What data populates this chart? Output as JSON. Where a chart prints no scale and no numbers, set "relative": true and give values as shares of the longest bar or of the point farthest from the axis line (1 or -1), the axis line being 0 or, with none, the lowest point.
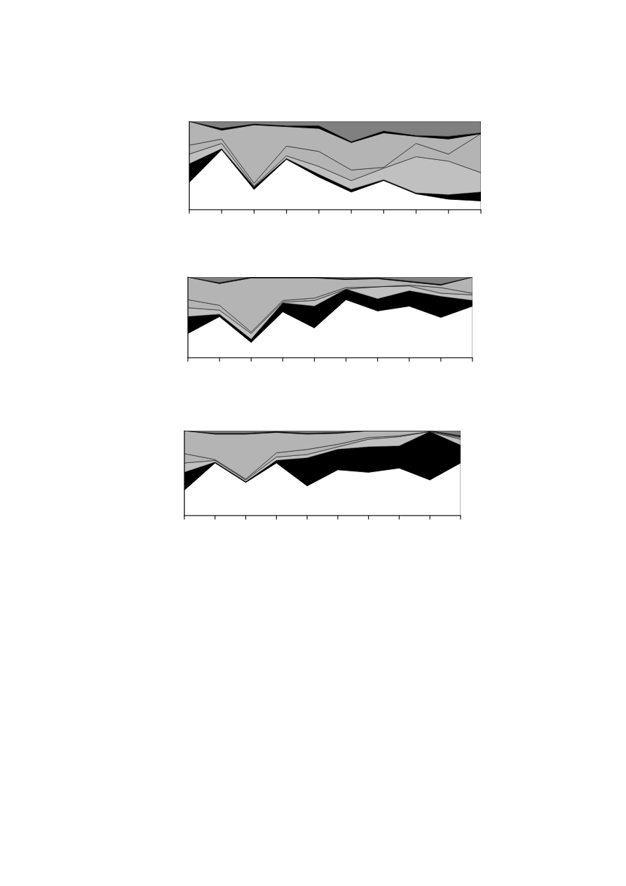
{
  "chart_data": [
    {
      "type": "area",
      "stacked": true,
      "relative": true,
      "categories": [
        null,
        null,
        null,
        null,
        null,
        null,
        null,
        null,
        null,
        null
      ],
      "series": [
        {
          "color": "#ffffff",
          "values": [
            0.31,
            0.68,
            0.23,
            0.57,
            0.37,
            0.2,
            0.33,
            0.18,
            0.12,
            0.1
          ]
        },
        {
          "color": "#000000",
          "values": [
            0.21,
            0.01,
            0.03,
            0.01,
            0.03,
            0.03,
            0.01,
            0.01,
            0.05,
            0.1
          ]
        },
        {
          "color": "#c0c0c0",
          "values": [
            0.11,
            0.06,
            0.01,
            0.03,
            0.09,
            0.1,
            0.13,
            0.41,
            0.38,
            0.22
          ]
        },
        {
          "color": "#b4b4b4",
          "values": [
            0.1,
            0.05,
            0.03,
            0.11,
            0.17,
            0.12,
            0.01,
            0.15,
            0.08,
            0.44
          ]
        },
        {
          "color": "#b4b4b4",
          "values": [
            0.27,
            0.1,
            0.66,
            0.22,
            0.26,
            0.31,
            0.39,
            0.08,
            0.17,
            0.0
          ]
        },
        {
          "color": "#000000",
          "values": [
            0.0,
            0.02,
            0.01,
            0.01,
            0.03,
            0.01,
            0.02,
            0.01,
            0.03,
            0.01
          ]
        },
        {
          "color": "#808080",
          "values": [
            0.0,
            0.08,
            0.03,
            0.05,
            0.05,
            0.23,
            0.11,
            0.16,
            0.17,
            0.13
          ]
        }
      ]
    },
    {
      "type": "area",
      "stacked": true,
      "relative": true,
      "categories": [
        null,
        null,
        null,
        null,
        null,
        null,
        null,
        null,
        null,
        null
      ],
      "series": [
        {
          "color": "#ffffff",
          "values": [
            0.3,
            0.51,
            0.19,
            0.57,
            0.37,
            0.72,
            0.58,
            0.64,
            0.5,
            0.64
          ]
        },
        {
          "color": "#000000",
          "values": [
            0.21,
            0.03,
            0.04,
            0.11,
            0.27,
            0.13,
            0.15,
            0.19,
            0.26,
            0.07
          ]
        },
        {
          "color": "#c0c0c0",
          "values": [
            0.11,
            0.05,
            0.07,
            0.01,
            0.07,
            0.0,
            0.15,
            0.06,
            0.04,
            0.07
          ]
        },
        {
          "color": "#b4b4b4",
          "values": [
            0.1,
            0.06,
            0.02,
            0.02,
            0.03,
            0.02,
            0.0,
            0.01,
            0.07,
            0.02
          ]
        },
        {
          "color": "#b4b4b4",
          "values": [
            0.28,
            0.27,
            0.67,
            0.28,
            0.25,
            0.1,
            0.1,
            0.04,
            0.03,
            0.2
          ]
        },
        {
          "color": "#000000",
          "values": [
            0.0,
            0.01,
            0.01,
            0.01,
            0.01,
            0.01,
            0.01,
            0.01,
            0.01,
            0.0
          ]
        },
        {
          "color": "#808080",
          "values": [
            0.0,
            0.07,
            0.0,
            0.0,
            0.0,
            0.02,
            0.01,
            0.05,
            0.09,
            0.0
          ]
        }
      ]
    },
    {
      "type": "area",
      "stacked": true,
      "relative": true,
      "categories": [
        null,
        null,
        null,
        null,
        null,
        null,
        null,
        null,
        null,
        null
      ],
      "series": [
        {
          "color": "#ffffff",
          "values": [
            0.3,
            0.62,
            0.39,
            0.62,
            0.35,
            0.54,
            0.51,
            0.56,
            0.42,
            0.62
          ]
        },
        {
          "color": "#000000",
          "values": [
            0.21,
            0.01,
            0.01,
            0.03,
            0.33,
            0.24,
            0.3,
            0.26,
            0.57,
            0.21
          ]
        },
        {
          "color": "#c0c0c0",
          "values": [
            0.11,
            0.02,
            0.02,
            0.04,
            0.04,
            0.03,
            0.09,
            0.11,
            0.0,
            0.07
          ]
        },
        {
          "color": "#b4b4b4",
          "values": [
            0.11,
            0.01,
            0.01,
            0.05,
            0.06,
            0.03,
            0.02,
            0.01,
            0.0,
            0.02
          ]
        },
        {
          "color": "#b4b4b4",
          "values": [
            0.27,
            0.3,
            0.53,
            0.24,
            0.18,
            0.13,
            0.08,
            0.06,
            0.01,
            0.01
          ]
        },
        {
          "color": "#000000",
          "values": [
            0.0,
            0.01,
            0.01,
            0.01,
            0.01,
            0.01,
            0.0,
            0.0,
            0.0,
            0.01
          ]
        },
        {
          "color": "#808080",
          "values": [
            0.0,
            0.03,
            0.03,
            0.01,
            0.03,
            0.02,
            0.0,
            0.0,
            0.0,
            0.06
          ]
        }
      ]
    }
  ]
}
